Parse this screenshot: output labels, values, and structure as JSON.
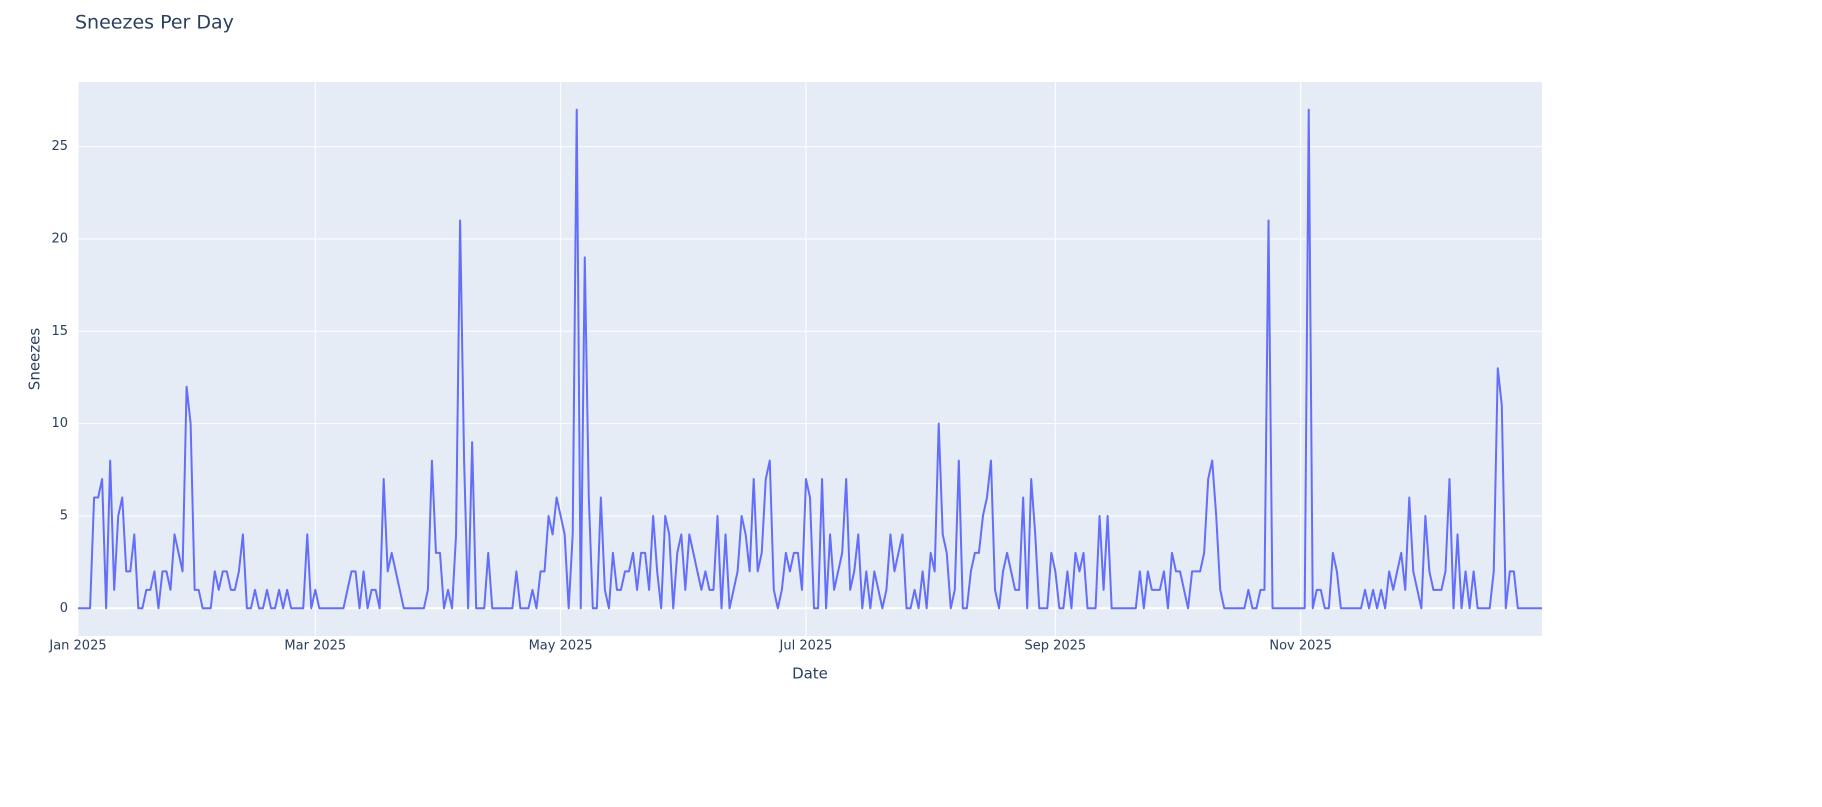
{
  "chart_data": {
    "type": "line",
    "title": "Sneezes Per Day",
    "x_label": "Date",
    "y_label": "Sneezes",
    "x": [
      0,
      1,
      2,
      3,
      4,
      5,
      6,
      7,
      8,
      9,
      10,
      11,
      12,
      13,
      14,
      15,
      16,
      17,
      18,
      19,
      20,
      21,
      22,
      23,
      24,
      25,
      26,
      27,
      28,
      29,
      30,
      31,
      32,
      33,
      34,
      35,
      36,
      37,
      38,
      39,
      40,
      41,
      42,
      43,
      44,
      45,
      46,
      47,
      48,
      49,
      50,
      51,
      52,
      53,
      54,
      55,
      56,
      57,
      58,
      59,
      60,
      61,
      62,
      63,
      64,
      65,
      66,
      67,
      68,
      69,
      70,
      71,
      72,
      73,
      74,
      75,
      76,
      77,
      78,
      79,
      80,
      81,
      82,
      83,
      84,
      85,
      86,
      87,
      88,
      89,
      90,
      91,
      92,
      93,
      94,
      95,
      96,
      97,
      98,
      99,
      100,
      101,
      102,
      103,
      104,
      105,
      106,
      107,
      108,
      109,
      110,
      111,
      112,
      113,
      114,
      115,
      116,
      117,
      118,
      119,
      120,
      121,
      122,
      123,
      124,
      125,
      126,
      127,
      128,
      129,
      130,
      131,
      132,
      133,
      134,
      135,
      136,
      137,
      138,
      139,
      140,
      141,
      142,
      143,
      144,
      145,
      146,
      147,
      148,
      149,
      150,
      151,
      152,
      153,
      154,
      155,
      156,
      157,
      158,
      159,
      160,
      161,
      162,
      163,
      164,
      165,
      166,
      167,
      168,
      169,
      170,
      171,
      172,
      173,
      174,
      175,
      176,
      177,
      178,
      179,
      180,
      181,
      182,
      183,
      184,
      185,
      186,
      187,
      188,
      189,
      190,
      191,
      192,
      193,
      194,
      195,
      196,
      197,
      198,
      199,
      200,
      201,
      202,
      203,
      204,
      205,
      206,
      207,
      208,
      209,
      210,
      211,
      212,
      213,
      214,
      215,
      216,
      217,
      218,
      219,
      220,
      221,
      222,
      223,
      224,
      225,
      226,
      227,
      228,
      229,
      230,
      231,
      232,
      233,
      234,
      235,
      236,
      237,
      238,
      239,
      240,
      241,
      242,
      243,
      244,
      245,
      246,
      247,
      248,
      249,
      250,
      251,
      252,
      253,
      254,
      255,
      256,
      257,
      258,
      259,
      260,
      261,
      262,
      263,
      264,
      265,
      266,
      267,
      268,
      269,
      270,
      271,
      272,
      273,
      274,
      275,
      276,
      277,
      278,
      279,
      280,
      281,
      282,
      283,
      284,
      285,
      286,
      287,
      288,
      289,
      290,
      291,
      292,
      293,
      294,
      295,
      296,
      297,
      298,
      299,
      300,
      301,
      302,
      303,
      304,
      305,
      306,
      307,
      308,
      309,
      310,
      311,
      312,
      313,
      314,
      315,
      316,
      317,
      318,
      319,
      320,
      321,
      322,
      323,
      324,
      325,
      326,
      327,
      328,
      329,
      330,
      331,
      332,
      333,
      334,
      335,
      336,
      337,
      338,
      339,
      340,
      341,
      342,
      343,
      344,
      345,
      346,
      347,
      348,
      349,
      350,
      351,
      352,
      353,
      354,
      355,
      356,
      357,
      358,
      359,
      360,
      361,
      362,
      363,
      364
    ],
    "series": [
      {
        "name": "Sneezes",
        "color": "#636efa",
        "values": [
          0,
          0,
          0,
          0,
          6,
          6,
          7,
          0,
          8,
          1,
          5,
          6,
          2,
          2,
          4,
          0,
          0,
          1,
          1,
          2,
          0,
          2,
          2,
          1,
          4,
          3,
          2,
          12,
          10,
          1,
          1,
          0,
          0,
          0,
          2,
          1,
          2,
          2,
          1,
          1,
          2,
          4,
          0,
          0,
          1,
          0,
          0,
          1,
          0,
          0,
          1,
          0,
          1,
          0,
          0,
          0,
          0,
          4,
          0,
          1,
          0,
          0,
          0,
          0,
          0,
          0,
          0,
          1,
          2,
          2,
          0,
          2,
          0,
          1,
          1,
          0,
          7,
          2,
          3,
          2,
          1,
          0,
          0,
          0,
          0,
          0,
          0,
          1,
          8,
          3,
          3,
          0,
          1,
          0,
          4,
          21,
          8,
          0,
          9,
          0,
          0,
          0,
          3,
          0,
          0,
          0,
          0,
          0,
          0,
          2,
          0,
          0,
          0,
          1,
          0,
          2,
          2,
          5,
          4,
          6,
          5,
          4,
          0,
          4,
          27,
          0,
          19,
          6,
          0,
          0,
          6,
          1,
          0,
          3,
          1,
          1,
          2,
          2,
          3,
          1,
          3,
          3,
          1,
          5,
          2,
          0,
          5,
          4,
          0,
          3,
          4,
          1,
          4,
          3,
          2,
          1,
          2,
          1,
          1,
          5,
          0,
          4,
          0,
          1,
          2,
          5,
          4,
          2,
          7,
          2,
          3,
          7,
          8,
          1,
          0,
          1,
          3,
          2,
          3,
          3,
          1,
          7,
          6,
          0,
          0,
          7,
          0,
          4,
          1,
          2,
          3,
          7,
          1,
          2,
          4,
          0,
          2,
          0,
          2,
          1,
          0,
          1,
          4,
          2,
          3,
          4,
          0,
          0,
          1,
          0,
          2,
          0,
          3,
          2,
          10,
          4,
          3,
          0,
          1,
          8,
          0,
          0,
          2,
          3,
          3,
          5,
          6,
          8,
          1,
          0,
          2,
          3,
          2,
          1,
          1,
          6,
          0,
          7,
          4,
          0,
          0,
          0,
          3,
          2,
          0,
          0,
          2,
          0,
          3,
          2,
          3,
          0,
          0,
          0,
          5,
          1,
          5,
          0,
          0,
          0,
          0,
          0,
          0,
          0,
          2,
          0,
          2,
          1,
          1,
          1,
          2,
          0,
          3,
          2,
          2,
          1,
          0,
          2,
          2,
          2,
          3,
          7,
          8,
          5,
          1,
          0,
          0,
          0,
          0,
          0,
          0,
          1,
          0,
          0,
          1,
          1,
          21,
          0,
          0,
          0,
          0,
          0,
          0,
          0,
          0,
          0,
          27,
          0,
          1,
          1,
          0,
          0,
          3,
          2,
          0,
          0,
          0,
          0,
          0,
          0,
          1,
          0,
          1,
          0,
          1,
          0,
          2,
          1,
          2,
          3,
          1,
          6,
          2,
          1,
          0,
          5,
          2,
          1,
          1,
          1,
          2,
          7,
          0,
          4,
          0,
          2,
          0,
          2,
          0,
          0,
          0,
          0,
          2,
          13,
          11,
          0,
          2,
          2,
          0,
          0,
          0,
          0,
          0,
          0,
          0
        ]
      }
    ],
    "xlim": [
      0,
      364
    ],
    "xticks": [
      {
        "value": 0,
        "label": "Jan 2025"
      },
      {
        "value": 59,
        "label": "Mar 2025"
      },
      {
        "value": 120,
        "label": "May 2025"
      },
      {
        "value": 181,
        "label": "Jul 2025"
      },
      {
        "value": 243,
        "label": "Sep 2025"
      },
      {
        "value": 304,
        "label": "Nov 2025"
      }
    ],
    "ylim": [
      -1.5,
      28.5
    ],
    "yticks": [
      0,
      5,
      10,
      15,
      20,
      25
    ],
    "grid": true
  }
}
